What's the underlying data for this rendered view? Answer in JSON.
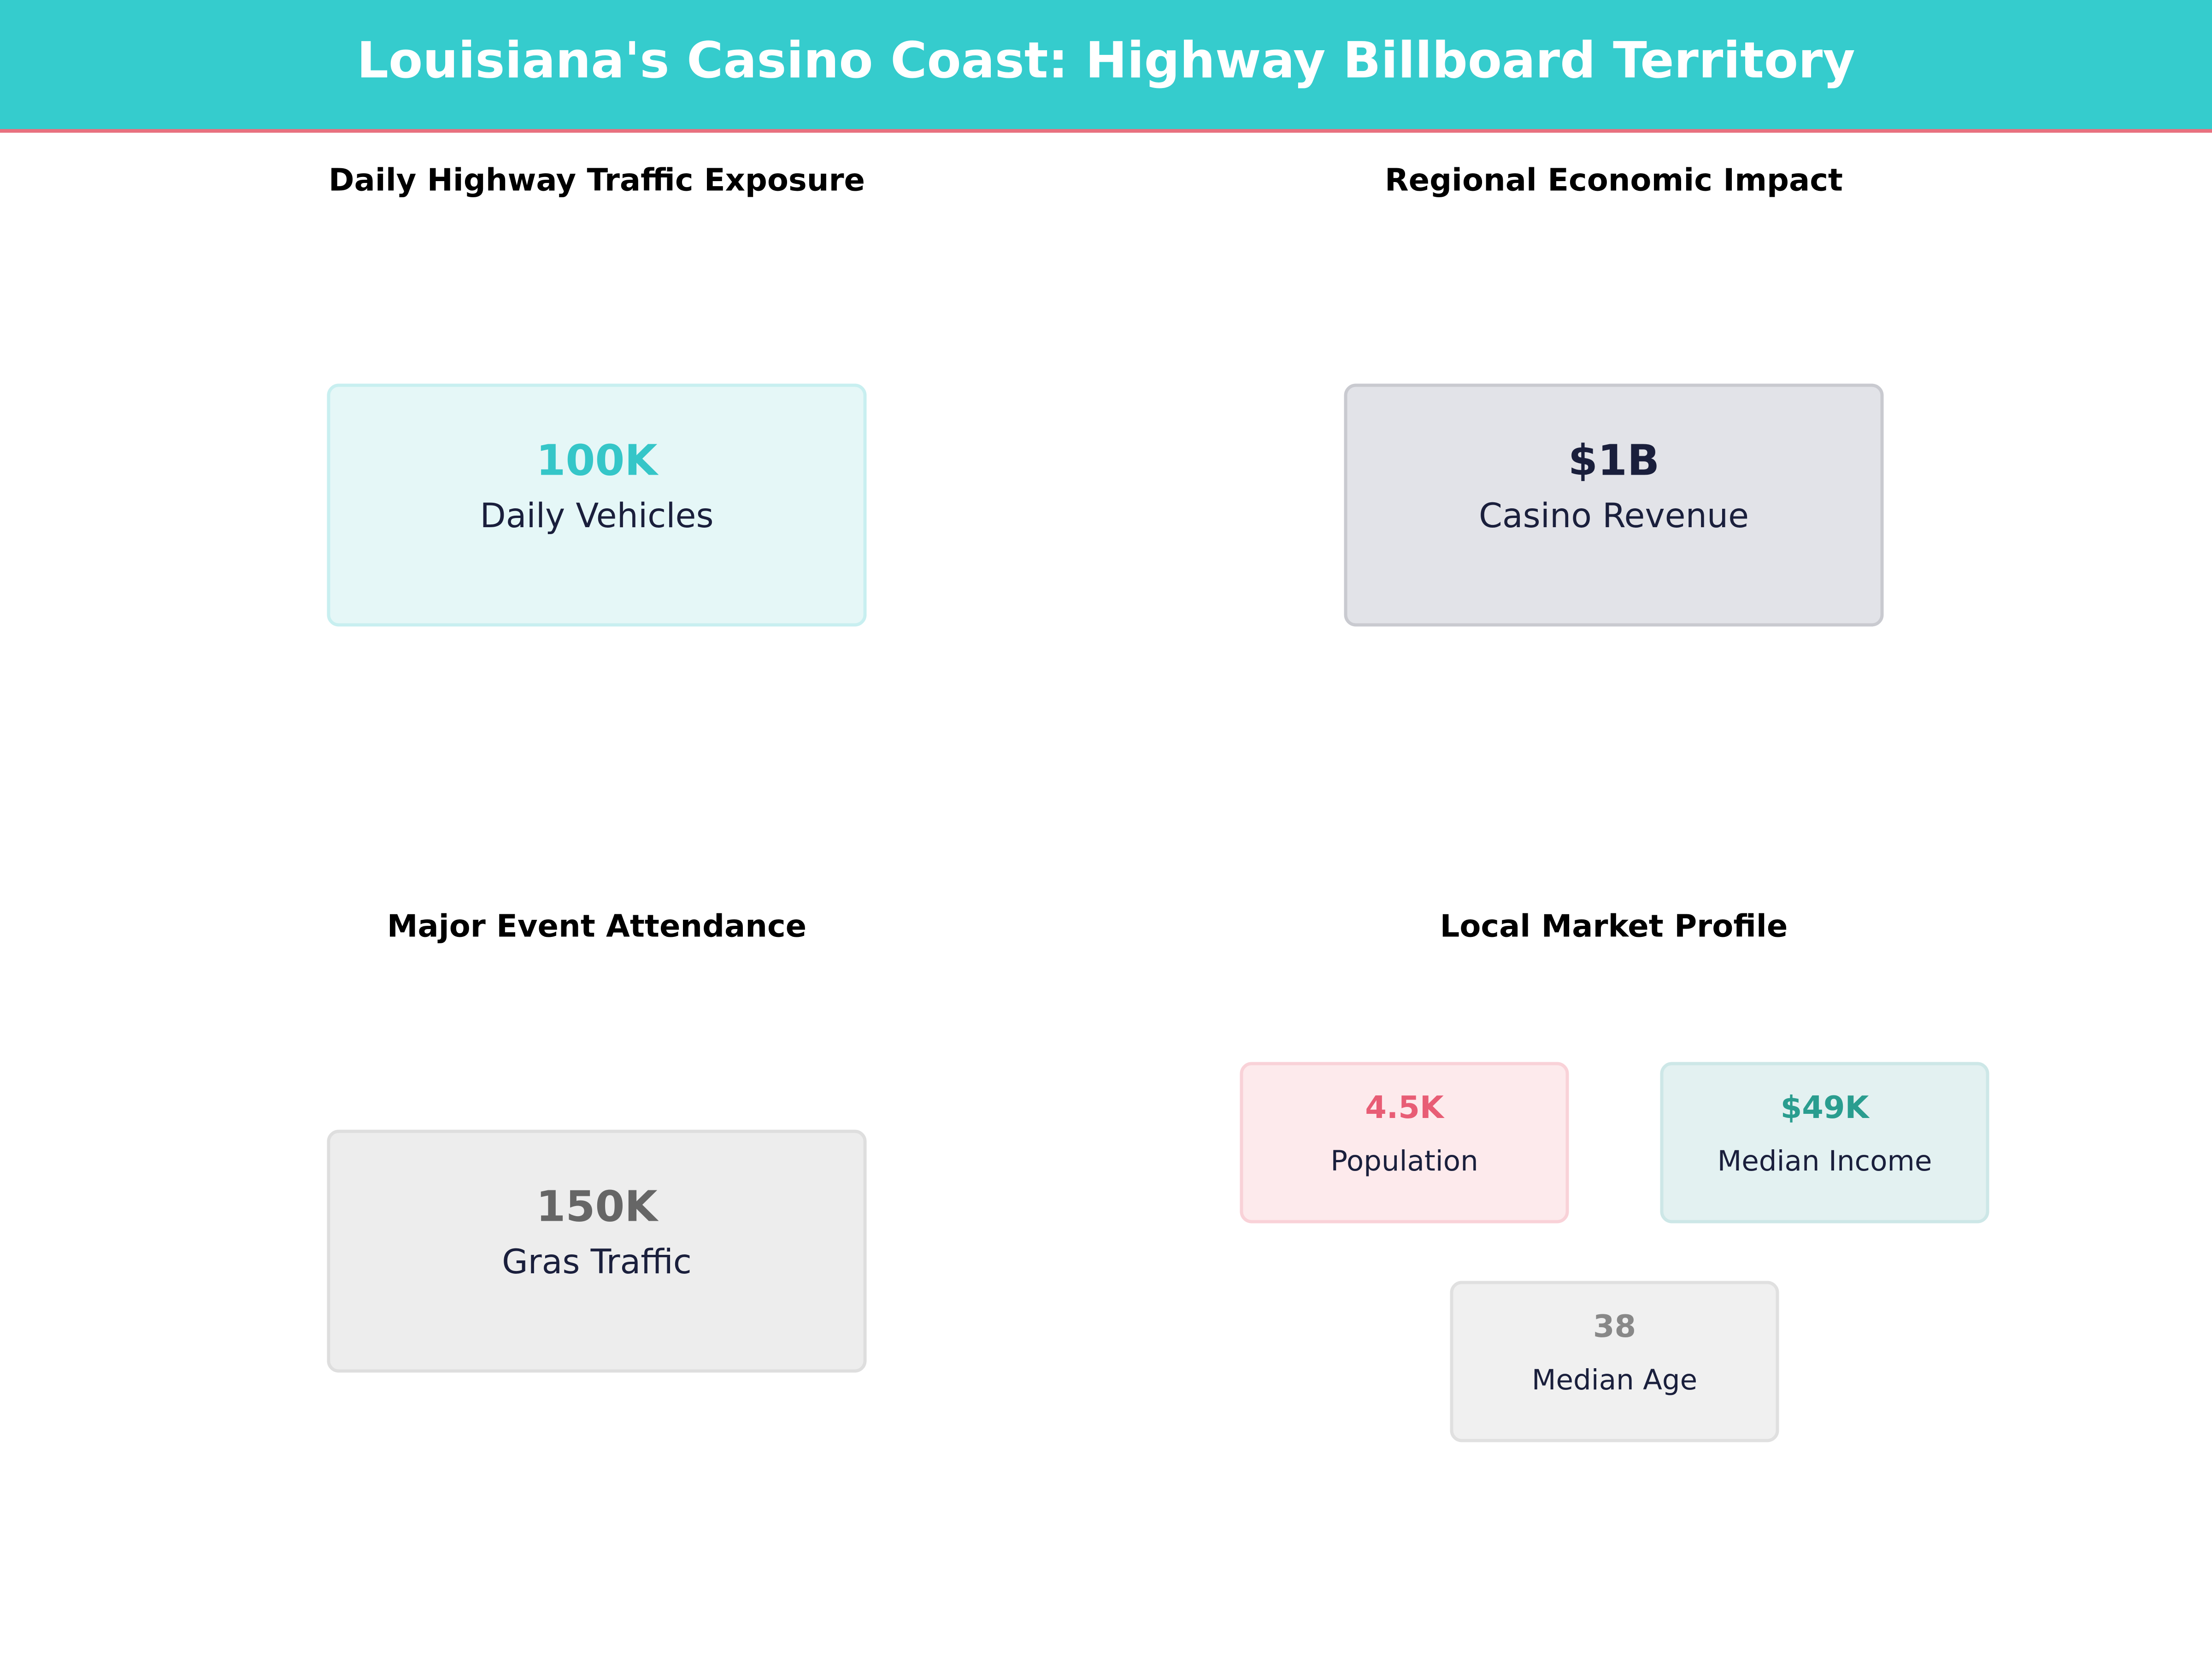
{
  "header": {
    "title": "Louisiana's Casino Coast: Highway Billboard Territory"
  },
  "panels": [
    {
      "title": "Daily Highway Traffic Exposure",
      "cards": [
        {
          "value": "100K",
          "label": "Daily Vehicles"
        }
      ]
    },
    {
      "title": "Regional Economic Impact",
      "cards": [
        {
          "value": "$1B",
          "label": "Casino Revenue"
        }
      ]
    },
    {
      "title": "Major Event Attendance",
      "cards": [
        {
          "value": "150K",
          "label": "Gras Traffic"
        }
      ]
    },
    {
      "title": "Local Market Profile",
      "cards": [
        {
          "value": "4.5K",
          "label": "Population"
        },
        {
          "value": "$49K",
          "label": "Median Income"
        },
        {
          "value": "38",
          "label": "Median Age"
        }
      ]
    }
  ]
}
